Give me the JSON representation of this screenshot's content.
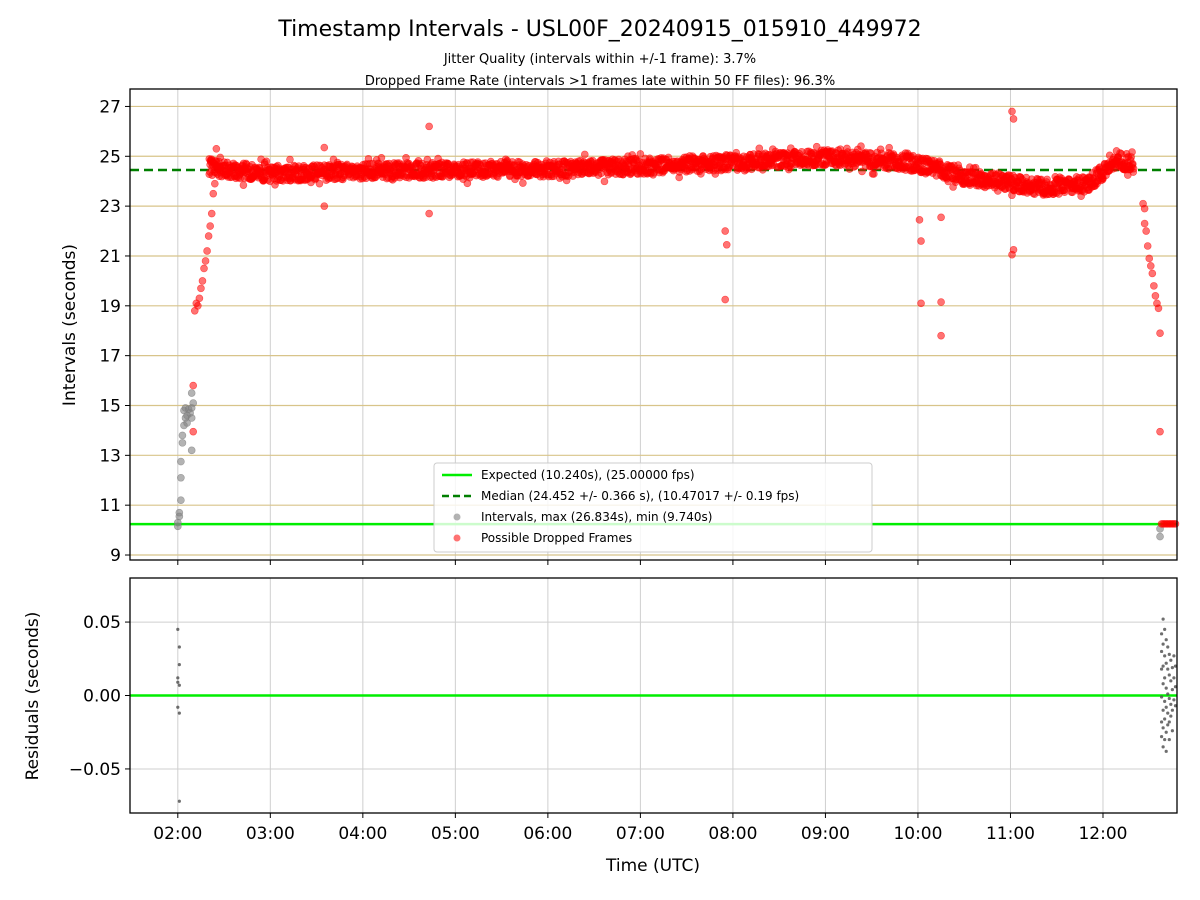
{
  "chart_data": [
    {
      "type": "scatter",
      "title": "Timestamp Intervals - USL00F_20240915_015910_449972",
      "subtitle_lines": [
        "Jitter Quality (intervals within +/-1 frame): 3.7%",
        "Dropped Frame Rate (intervals >1 frames late within 50 FF files): 96.3%"
      ],
      "xlabel": "",
      "ylabel": "Intervals (seconds)",
      "xlim": [
        "01:29",
        "12:48"
      ],
      "ylim": [
        8.8,
        27.7
      ],
      "yticks": [
        9,
        11,
        13,
        15,
        17,
        19,
        21,
        23,
        25,
        27
      ],
      "xticks": [
        "02:00",
        "03:00",
        "04:00",
        "05:00",
        "06:00",
        "07:00",
        "08:00",
        "09:00",
        "10:00",
        "11:00",
        "12:00"
      ],
      "grid": true,
      "legend_placement": "lower-center",
      "reference_lines": [
        {
          "name": "Expected (10.240s), (25.00000 fps)",
          "y": 10.24,
          "color": "#00ee00",
          "style": "solid"
        },
        {
          "name": "Median (24.452 +/- 0.366 s), (10.47017 +/- 0.19 fps)",
          "y": 24.452,
          "color": "#007f00",
          "style": "dashed"
        }
      ],
      "series": [
        {
          "name": "Intervals, max (26.834s), min (9.740s)",
          "color": "#808080",
          "alpha": 0.6
        },
        {
          "name": "Possible Dropped Frames",
          "color": "#ff0000",
          "alpha": 0.55
        }
      ],
      "trend_segments": [
        {
          "times": [
            "02:20",
            "02:26",
            "03:00",
            "04:00",
            "05:00",
            "06:00",
            "07:00",
            "07:30",
            "08:00",
            "09:00",
            "09:30",
            "10:00",
            "10:30",
            "11:00",
            "11:20",
            "11:50",
            "12:10",
            "12:20"
          ],
          "values": [
            24.6,
            24.5,
            24.3,
            24.4,
            24.45,
            24.5,
            24.6,
            24.7,
            24.75,
            24.95,
            24.85,
            24.7,
            24.15,
            23.95,
            23.75,
            23.9,
            24.85,
            24.55
          ],
          "spread": 0.32
        }
      ],
      "gray_points": [
        [
          "02:00",
          10.15
        ],
        [
          "02:00",
          10.3
        ],
        [
          "02:01",
          10.55
        ],
        [
          "02:01",
          10.7
        ],
        [
          "02:02",
          11.2
        ],
        [
          "02:02",
          12.1
        ],
        [
          "02:02",
          12.75
        ],
        [
          "02:03",
          13.5
        ],
        [
          "02:03",
          13.8
        ],
        [
          "02:04",
          14.2
        ],
        [
          "02:04",
          14.8
        ],
        [
          "02:05",
          14.5
        ],
        [
          "02:05",
          14.9
        ],
        [
          "02:06",
          14.6
        ],
        [
          "02:06",
          14.3
        ],
        [
          "02:07",
          14.85
        ],
        [
          "02:08",
          14.7
        ],
        [
          "02:09",
          13.2
        ],
        [
          "02:09",
          14.5
        ],
        [
          "02:10",
          15.1
        ],
        [
          "02:09",
          15.5
        ],
        [
          "02:09",
          14.9
        ],
        [
          "12:37",
          9.74
        ],
        [
          "12:37",
          10.05
        ]
      ],
      "red_points": [
        [
          "02:10",
          15.8
        ],
        [
          "02:10",
          13.95
        ],
        [
          "02:11",
          18.8
        ],
        [
          "02:12",
          19.1
        ],
        [
          "02:13",
          19.0
        ],
        [
          "02:14",
          19.3
        ],
        [
          "02:15",
          19.7
        ],
        [
          "02:16",
          20.0
        ],
        [
          "02:17",
          20.5
        ],
        [
          "02:18",
          20.8
        ],
        [
          "02:19",
          21.2
        ],
        [
          "02:20",
          21.8
        ],
        [
          "02:21",
          22.2
        ],
        [
          "02:22",
          22.7
        ],
        [
          "02:23",
          23.5
        ],
        [
          "02:24",
          23.9
        ],
        [
          "02:25",
          24.8
        ],
        [
          "02:25",
          25.3
        ],
        [
          "03:35",
          25.35
        ],
        [
          "03:35",
          23.0
        ],
        [
          "04:43",
          26.2
        ],
        [
          "04:43",
          22.7
        ],
        [
          "07:55",
          22.0
        ],
        [
          "07:56",
          21.45
        ],
        [
          "07:55",
          19.25
        ],
        [
          "10:01",
          22.45
        ],
        [
          "10:02",
          21.6
        ],
        [
          "10:02",
          19.1
        ],
        [
          "10:15",
          22.55
        ],
        [
          "10:15",
          19.15
        ],
        [
          "10:15",
          17.8
        ],
        [
          "11:01",
          26.8
        ],
        [
          "11:02",
          26.5
        ],
        [
          "11:02",
          21.25
        ],
        [
          "11:01",
          21.05
        ],
        [
          "12:26",
          23.1
        ],
        [
          "12:27",
          22.9
        ],
        [
          "12:27",
          22.3
        ],
        [
          "12:28",
          22.0
        ],
        [
          "12:29",
          21.4
        ],
        [
          "12:30",
          20.9
        ],
        [
          "12:31",
          20.6
        ],
        [
          "12:32",
          20.3
        ],
        [
          "12:33",
          19.8
        ],
        [
          "12:34",
          19.4
        ],
        [
          "12:35",
          19.1
        ],
        [
          "12:36",
          18.9
        ],
        [
          "12:37",
          17.9
        ],
        [
          "12:37",
          13.95
        ],
        [
          "12:38",
          10.25
        ],
        [
          "12:39",
          10.25
        ],
        [
          "12:40",
          10.25
        ],
        [
          "12:41",
          10.25
        ],
        [
          "12:42",
          10.25
        ],
        [
          "12:43",
          10.25
        ],
        [
          "12:44",
          10.25
        ],
        [
          "12:45",
          10.25
        ],
        [
          "12:46",
          10.25
        ],
        [
          "12:47",
          10.25
        ]
      ]
    },
    {
      "type": "scatter",
      "title": "",
      "xlabel": "Time (UTC)",
      "ylabel": "Residuals (seconds)",
      "xlim": [
        "01:29",
        "12:48"
      ],
      "ylim": [
        -0.08,
        0.08
      ],
      "yticks": [
        -0.05,
        0.0,
        0.05
      ],
      "ytick_labels": [
        "−0.05",
        "0.00",
        "0.05"
      ],
      "xticks": [
        "02:00",
        "03:00",
        "04:00",
        "05:00",
        "06:00",
        "07:00",
        "08:00",
        "09:00",
        "10:00",
        "11:00",
        "12:00"
      ],
      "grid": true,
      "reference_lines": [
        {
          "name": "",
          "y": 0.0,
          "color": "#00ee00",
          "style": "solid"
        }
      ],
      "points": [
        [
          "02:00",
          0.045
        ],
        [
          "02:01",
          0.033
        ],
        [
          "02:01",
          0.021
        ],
        [
          "02:00",
          0.012
        ],
        [
          "02:00",
          0.009
        ],
        [
          "02:01",
          0.007
        ],
        [
          "02:00",
          -0.008
        ],
        [
          "02:01",
          -0.012
        ],
        [
          "02:01",
          -0.072
        ],
        [
          "12:38",
          0.042
        ],
        [
          "12:38",
          0.03
        ],
        [
          "12:38",
          0.018
        ],
        [
          "12:38",
          -0.001
        ],
        [
          "12:38",
          -0.018
        ],
        [
          "12:38",
          -0.028
        ],
        [
          "12:39",
          0.052
        ],
        [
          "12:39",
          0.035
        ],
        [
          "12:39",
          0.02
        ],
        [
          "12:39",
          0.008
        ],
        [
          "12:39",
          -0.01
        ],
        [
          "12:39",
          -0.022
        ],
        [
          "12:39",
          -0.035
        ],
        [
          "12:40",
          0.045
        ],
        [
          "12:40",
          0.027
        ],
        [
          "12:40",
          0.012
        ],
        [
          "12:40",
          -0.004
        ],
        [
          "12:40",
          -0.016
        ],
        [
          "12:40",
          -0.03
        ],
        [
          "12:41",
          0.038
        ],
        [
          "12:41",
          0.022
        ],
        [
          "12:41",
          0.005
        ],
        [
          "12:41",
          -0.008
        ],
        [
          "12:41",
          -0.025
        ],
        [
          "12:41",
          -0.038
        ],
        [
          "12:42",
          0.033
        ],
        [
          "12:42",
          0.018
        ],
        [
          "12:42",
          0.001
        ],
        [
          "12:42",
          -0.012
        ],
        [
          "12:42",
          -0.02
        ],
        [
          "12:43",
          0.028
        ],
        [
          "12:43",
          0.014
        ],
        [
          "12:43",
          -0.002
        ],
        [
          "12:43",
          -0.018
        ],
        [
          "12:43",
          -0.03
        ],
        [
          "12:44",
          0.024
        ],
        [
          "12:44",
          0.01
        ],
        [
          "12:44",
          -0.006
        ],
        [
          "12:44",
          -0.014
        ],
        [
          "12:45",
          0.019
        ],
        [
          "12:45",
          0.004
        ],
        [
          "12:45",
          -0.01
        ],
        [
          "12:45",
          -0.024
        ],
        [
          "12:46",
          0.027
        ],
        [
          "12:46",
          0.012
        ],
        [
          "12:46",
          -0.003
        ],
        [
          "12:47",
          0.02
        ],
        [
          "12:47",
          0.006
        ],
        [
          "12:47",
          -0.007
        ]
      ]
    }
  ]
}
